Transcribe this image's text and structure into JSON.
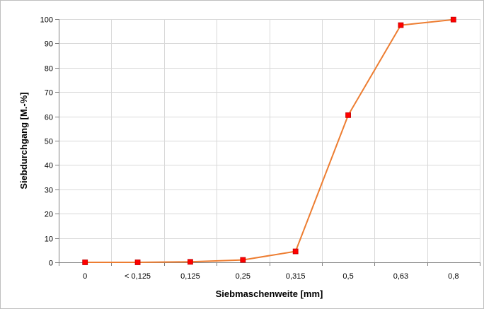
{
  "chart_data": {
    "type": "line",
    "title": "",
    "xlabel": "Siebmaschenweite [mm]",
    "ylabel": "Siebdurchgang [M.-%]",
    "categories": [
      "0",
      "< 0,125",
      "0,125",
      "0,25",
      "0,315",
      "0,5",
      "0,63",
      "0,8"
    ],
    "series": [
      {
        "values": [
          0,
          0,
          0.2,
          1,
          4.5,
          60.5,
          97.5,
          99.8
        ]
      }
    ],
    "ylim": [
      0,
      100
    ],
    "yticks": [
      0,
      10,
      20,
      30,
      40,
      50,
      60,
      70,
      80,
      90,
      100
    ],
    "grid": true,
    "legend": "none",
    "colors": {
      "line": "#ED7D31",
      "marker": "#FF0000",
      "marker_edge": "#C00000",
      "grid": "#D9D9D9",
      "axis": "#808080"
    }
  }
}
